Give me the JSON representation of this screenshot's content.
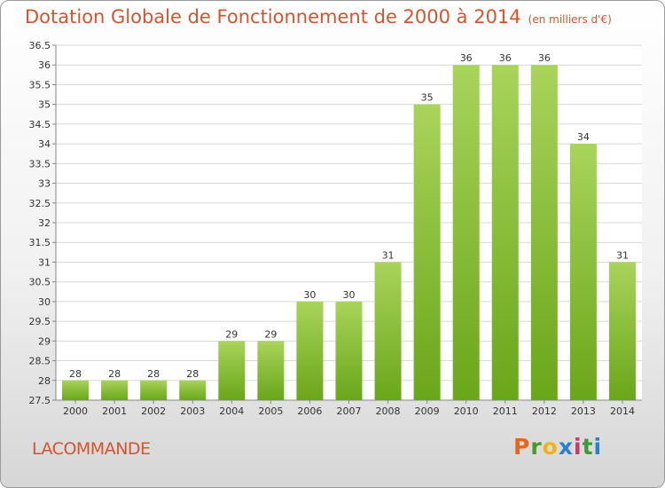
{
  "header": {
    "title": "Dotation Globale de Fonctionnement de 2000 à 2014",
    "unit": "(en milliers d'€)"
  },
  "commune": "LACOMMANDE",
  "logo": {
    "letters": [
      "P",
      "r",
      "o",
      "x",
      "i",
      "t",
      "i"
    ],
    "colors": [
      "#e8661c",
      "#4a9a2a",
      "#f0b21a",
      "#2a7fd0",
      "#d6326b",
      "#3a9d3a",
      "#2a7fd0"
    ]
  },
  "colors": {
    "bar_light": "#a8d45a",
    "bar_dark": "#6aa61a",
    "grid": "#d8d8d8"
  },
  "chart_data": {
    "type": "bar",
    "title": "Dotation Globale de Fonctionnement de 2000 à 2014",
    "subtitle": "(en milliers d'€)",
    "categories": [
      "2000",
      "2001",
      "2002",
      "2003",
      "2004",
      "2005",
      "2006",
      "2007",
      "2008",
      "2009",
      "2010",
      "2011",
      "2012",
      "2013",
      "2014"
    ],
    "values": [
      28,
      28,
      28,
      28,
      29,
      29,
      30,
      30,
      31,
      35,
      36,
      36,
      36,
      34,
      31
    ],
    "ylim": [
      27.5,
      36.5
    ],
    "yticks": [
      "27.5",
      "28",
      "28.5",
      "29",
      "29.5",
      "30",
      "30.5",
      "31",
      "31.5",
      "32",
      "32.5",
      "33",
      "33.5",
      "34",
      "34.5",
      "35",
      "35.5",
      "36",
      "36.5"
    ],
    "grid": true,
    "legend": "none"
  }
}
